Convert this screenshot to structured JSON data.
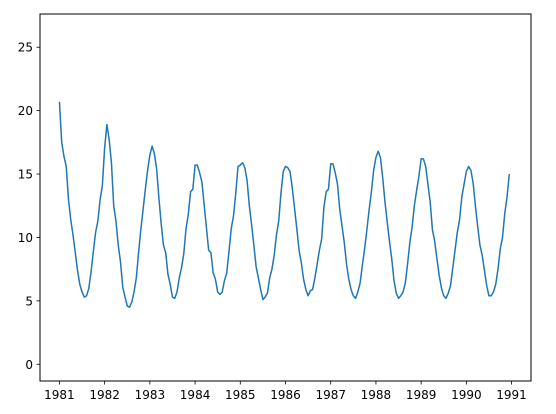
{
  "chart_data": {
    "type": "line",
    "title": "",
    "xlabel": "",
    "ylabel": "",
    "x_ticks": [
      "1981",
      "1982",
      "1983",
      "1984",
      "1985",
      "1986",
      "1987",
      "1988",
      "1989",
      "1990",
      "1991"
    ],
    "y_ticks": [
      "0",
      "5",
      "10",
      "15",
      "20",
      "25"
    ],
    "xlim": [
      1980.57,
      1991.43
    ],
    "ylim": [
      -1.32,
      27.62
    ],
    "grid": false,
    "legend": "none",
    "series": [
      {
        "color": "#1f77b4",
        "x": [
          1981.0,
          1981.05,
          1981.1,
          1981.15,
          1981.2,
          1981.25,
          1981.3,
          1981.35,
          1981.4,
          1981.45,
          1981.5,
          1981.55,
          1981.6,
          1981.65,
          1981.7,
          1981.75,
          1981.8,
          1981.85,
          1981.9,
          1981.95,
          1982.0,
          1982.05,
          1982.1,
          1982.15,
          1982.2,
          1982.25,
          1982.3,
          1982.35,
          1982.4,
          1982.45,
          1982.5,
          1982.55,
          1982.6,
          1982.65,
          1982.7,
          1982.75,
          1982.8,
          1982.85,
          1982.9,
          1982.95,
          1983.0,
          1983.05,
          1983.1,
          1983.15,
          1983.2,
          1983.25,
          1983.3,
          1983.35,
          1983.4,
          1983.45,
          1983.5,
          1983.55,
          1983.6,
          1983.65,
          1983.7,
          1983.75,
          1983.8,
          1983.85,
          1983.9,
          1983.95,
          1984.0,
          1984.05,
          1984.1,
          1984.15,
          1984.2,
          1984.25,
          1984.3,
          1984.35,
          1984.4,
          1984.45,
          1984.5,
          1984.55,
          1984.6,
          1984.65,
          1984.7,
          1984.75,
          1984.8,
          1984.85,
          1984.9,
          1984.95,
          1985.0,
          1985.05,
          1985.1,
          1985.15,
          1985.2,
          1985.25,
          1985.3,
          1985.35,
          1985.4,
          1985.45,
          1985.5,
          1985.55,
          1985.6,
          1985.65,
          1985.7,
          1985.75,
          1985.8,
          1985.85,
          1985.9,
          1985.95,
          1986.0,
          1986.05,
          1986.1,
          1986.15,
          1986.2,
          1986.25,
          1986.3,
          1986.35,
          1986.4,
          1986.45,
          1986.5,
          1986.55,
          1986.6,
          1986.65,
          1986.7,
          1986.75,
          1986.8,
          1986.85,
          1986.9,
          1986.95,
          1987.0,
          1987.05,
          1987.1,
          1987.15,
          1987.2,
          1987.25,
          1987.3,
          1987.35,
          1987.4,
          1987.45,
          1987.5,
          1987.55,
          1987.6,
          1987.65,
          1987.7,
          1987.75,
          1987.8,
          1987.85,
          1987.9,
          1987.95,
          1988.0,
          1988.05,
          1988.1,
          1988.15,
          1988.2,
          1988.25,
          1988.3,
          1988.35,
          1988.4,
          1988.45,
          1988.5,
          1988.55,
          1988.6,
          1988.65,
          1988.7,
          1988.75,
          1988.8,
          1988.85,
          1988.9,
          1988.95,
          1989.0,
          1989.05,
          1989.1,
          1989.15,
          1989.2,
          1989.25,
          1989.3,
          1989.35,
          1989.4,
          1989.45,
          1989.5,
          1989.55,
          1989.6,
          1989.65,
          1989.7,
          1989.75,
          1989.8,
          1989.85,
          1989.9,
          1989.95,
          1990.0,
          1990.05,
          1990.1,
          1990.15,
          1990.2,
          1990.25,
          1990.3,
          1990.35,
          1990.4,
          1990.45,
          1990.5,
          1990.55,
          1990.6,
          1990.65,
          1990.7,
          1990.75,
          1990.8,
          1990.85,
          1990.9,
          1990.95
        ],
        "y": [
          20.7,
          17.5,
          16.4,
          15.6,
          13.0,
          11.4,
          10.2,
          8.8,
          7.4,
          6.3,
          5.7,
          5.3,
          5.4,
          6.0,
          7.3,
          8.9,
          10.4,
          11.3,
          13.0,
          14.1,
          17.1,
          18.9,
          17.7,
          15.9,
          12.5,
          11.3,
          9.4,
          8.1,
          6.1,
          5.3,
          4.6,
          4.5,
          4.9,
          5.7,
          6.8,
          8.8,
          10.6,
          12.2,
          13.8,
          15.3,
          16.5,
          17.2,
          16.6,
          15.4,
          13.1,
          11.1,
          9.4,
          8.8,
          7.1,
          6.3,
          5.3,
          5.2,
          5.7,
          6.8,
          7.6,
          8.7,
          10.7,
          11.8,
          13.6,
          13.8,
          15.7,
          15.7,
          15.1,
          14.4,
          12.6,
          10.8,
          9.0,
          8.8,
          7.2,
          6.7,
          5.7,
          5.5,
          5.7,
          6.6,
          7.2,
          8.9,
          10.7,
          11.7,
          13.5,
          15.6,
          15.7,
          15.9,
          15.5,
          14.5,
          12.5,
          11.0,
          9.4,
          7.7,
          6.8,
          5.9,
          5.1,
          5.3,
          5.6,
          6.8,
          7.5,
          8.6,
          10.2,
          11.3,
          13.5,
          15.2,
          15.6,
          15.5,
          15.2,
          13.9,
          12.3,
          10.7,
          9.0,
          8.0,
          6.7,
          5.9,
          5.4,
          5.8,
          5.9,
          6.8,
          7.9,
          9.0,
          9.9,
          12.4,
          13.6,
          13.8,
          15.8,
          15.8,
          15.1,
          14.2,
          12.2,
          10.9,
          9.6,
          7.9,
          6.7,
          5.9,
          5.4,
          5.2,
          5.7,
          6.4,
          7.8,
          9.1,
          10.6,
          12.2,
          13.6,
          15.3,
          16.3,
          16.8,
          16.3,
          14.7,
          12.8,
          11.2,
          9.7,
          8.3,
          6.6,
          5.6,
          5.2,
          5.4,
          5.7,
          6.4,
          7.9,
          9.6,
          10.8,
          12.5,
          13.7,
          14.8,
          16.2,
          16.2,
          15.6,
          14.2,
          12.8,
          10.6,
          9.7,
          8.3,
          7.0,
          6.0,
          5.4,
          5.2,
          5.6,
          6.2,
          7.6,
          9.0,
          10.4,
          11.4,
          13.2,
          14.2,
          15.2,
          15.6,
          15.3,
          14.3,
          12.5,
          10.9,
          9.4,
          8.6,
          7.4,
          6.2,
          5.4,
          5.4,
          5.7,
          6.3,
          7.5,
          9.1,
          10.0,
          11.9,
          13.2,
          15.0
        ]
      }
    ]
  }
}
